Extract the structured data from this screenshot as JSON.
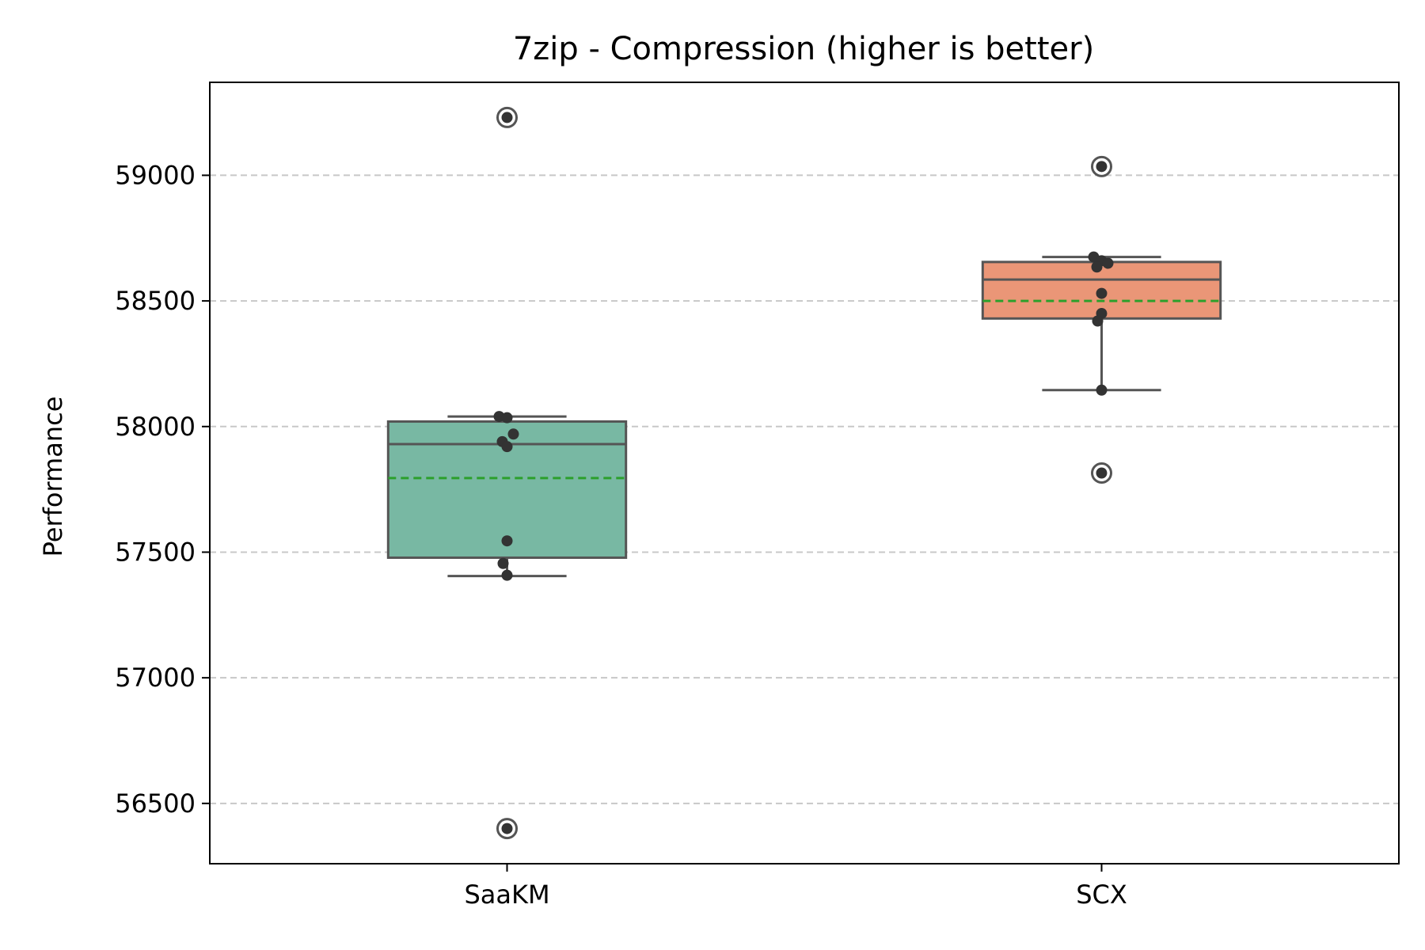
{
  "chart_data": {
    "type": "box",
    "title": "7zip - Compression (higher is better)",
    "xlabel": "",
    "ylabel": "Performance",
    "categories": [
      "SaaKM",
      "SCX"
    ],
    "ylim": [
      56260,
      59370
    ],
    "yticks": [
      56500,
      57000,
      57500,
      58000,
      58500,
      59000
    ],
    "grid": {
      "y": true,
      "style": "dashed"
    },
    "series": [
      {
        "color": "#78b8a3",
        "whisker_low": 57405,
        "q1": 57478,
        "median": 57930,
        "mean": 57795,
        "q3": 58020,
        "whisker_high": 58040,
        "outliers": [
          59230,
          56400
        ],
        "points": [
          58040,
          58035,
          57970,
          57940,
          57920,
          57545,
          57455,
          57408,
          59230,
          56400
        ]
      },
      {
        "color": "#ea9677",
        "whisker_low": 58145,
        "q1": 58430,
        "median": 58585,
        "mean": 58500,
        "q3": 58655,
        "whisker_high": 58675,
        "outliers": [
          59035,
          57815
        ],
        "points": [
          58675,
          58660,
          58650,
          58635,
          58530,
          58450,
          58420,
          58145,
          59035,
          57815
        ]
      }
    ],
    "mean_line_color": "#2ca02c"
  }
}
